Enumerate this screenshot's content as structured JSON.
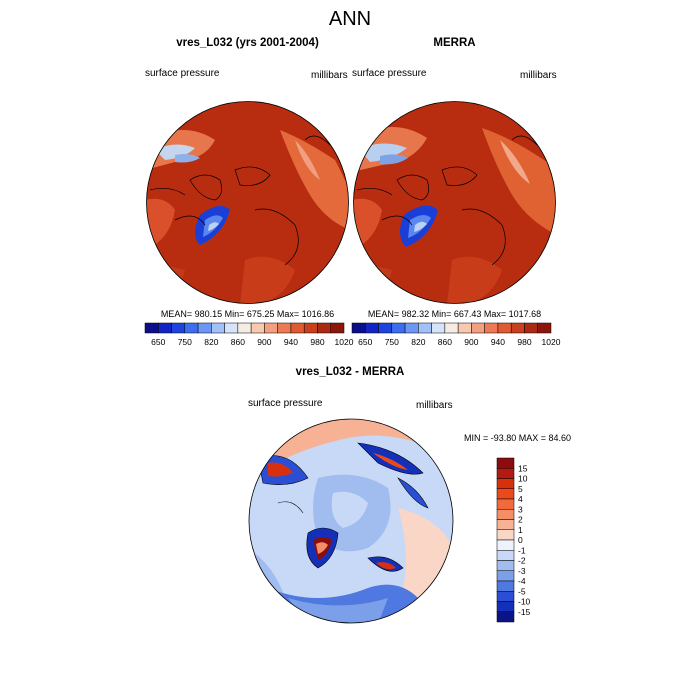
{
  "title": "ANN",
  "panels": [
    {
      "id": "model",
      "title": "vres_L032 (yrs 2001-2004)",
      "left_label": "surface pressure",
      "right_label": "millibars",
      "stats": "MEAN= 980.15  Min= 675.25  Max= 1016.86"
    },
    {
      "id": "obs",
      "title": "MERRA",
      "left_label": "surface pressure",
      "right_label": "millibars",
      "stats": "MEAN= 982.32  Min= 667.43  Max= 1017.68"
    }
  ],
  "colorbar_top": {
    "tick_labels": [
      "650",
      "750",
      "820",
      "860",
      "900",
      "940",
      "980",
      "1020"
    ],
    "colors": [
      "#0b0f8a",
      "#1224c4",
      "#1e44e0",
      "#3c6ff0",
      "#6c98f5",
      "#a3c1f9",
      "#d5e4fb",
      "#f6ece4",
      "#f7c9ae",
      "#f3a080",
      "#ee7a55",
      "#e05a32",
      "#c9401e",
      "#ab2a12",
      "#8c160a"
    ]
  },
  "diff_panel": {
    "title": "vres_L032 - MERRA",
    "left_label": "surface pressure",
    "right_label": "millibars",
    "stats": "MIN = -93.80  MAX =  84.60"
  },
  "colorbar_diff": {
    "tick_labels": [
      "15",
      "10",
      "5",
      "4",
      "3",
      "2",
      "1",
      "0",
      "-1",
      "-2",
      "-3",
      "-4",
      "-5",
      "-10",
      "-15"
    ],
    "colors": [
      "#8b0d0d",
      "#b51a12",
      "#d8300f",
      "#eb4a1c",
      "#f26a3c",
      "#f58d66",
      "#f7b194",
      "#fad6c6",
      "#eef3fb",
      "#c7d9f6",
      "#a1bdf0",
      "#7c9fe9",
      "#4f78e0",
      "#2a4fd4",
      "#1530b8",
      "#0a1488"
    ]
  }
}
